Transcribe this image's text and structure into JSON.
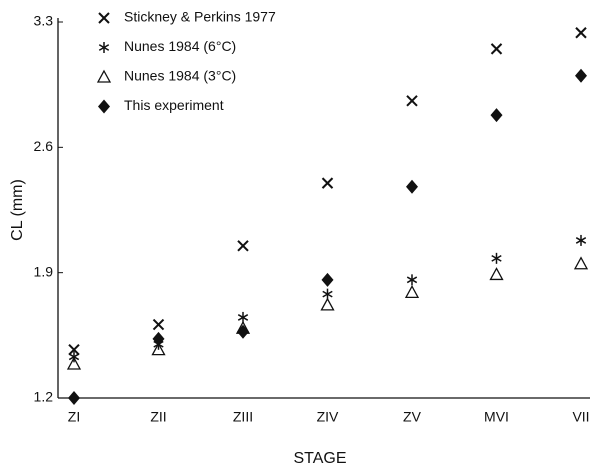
{
  "chart_data": {
    "type": "scatter",
    "x_label": "STAGE",
    "y_label": "CL (mm)",
    "categories": [
      "ZI",
      "ZII",
      "ZIII",
      "ZIV",
      "ZV",
      "MVI",
      "VII"
    ],
    "ylim": [
      1.2,
      3.3
    ],
    "yticks": [
      1.2,
      1.9,
      2.6,
      3.3
    ],
    "grid": false,
    "legend": "upper left",
    "series": [
      {
        "name": "Stickney & Perkins 1977",
        "marker": "x",
        "color": "#111",
        "values": [
          1.47,
          1.61,
          2.05,
          2.4,
          2.86,
          3.15,
          3.24
        ]
      },
      {
        "name": "Nunes 1984 (6°C)",
        "marker": "asterisk",
        "color": "#111",
        "values": [
          1.43,
          1.5,
          1.65,
          1.78,
          1.86,
          1.98,
          2.08
        ]
      },
      {
        "name": "Nunes 1984 (3°C)",
        "marker": "triangle",
        "color": "#111",
        "values": [
          1.39,
          1.47,
          1.59,
          1.72,
          1.79,
          1.89,
          1.95
        ]
      },
      {
        "name": "This experiment",
        "marker": "diamond",
        "color": "#111",
        "values": [
          1.2,
          1.53,
          1.57,
          1.86,
          2.38,
          2.78,
          3.0
        ]
      }
    ]
  }
}
